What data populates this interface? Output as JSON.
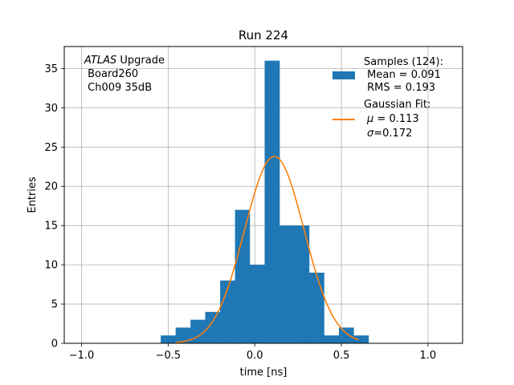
{
  "chart_data": {
    "type": "bar",
    "title": "Run 224",
    "xlabel": "time [ns]",
    "ylabel": "Entries",
    "xlim": [
      -1.1,
      1.2
    ],
    "ylim": [
      0,
      37.8
    ],
    "grid": true,
    "xticks": [
      "−1.0",
      "−0.5",
      "0.0",
      "0.5",
      "1.0"
    ],
    "xtick_values": [
      -1.0,
      -0.5,
      0.0,
      0.5,
      1.0
    ],
    "yticks": [
      "0",
      "5",
      "10",
      "15",
      "20",
      "25",
      "30",
      "35"
    ],
    "ytick_values": [
      0,
      5,
      10,
      15,
      20,
      25,
      30,
      35
    ],
    "bin_width": 0.0857,
    "bin_edges": [
      -0.543,
      -0.457,
      -0.371,
      -0.286,
      -0.2,
      -0.114,
      -0.029,
      0.057,
      0.143,
      0.229,
      0.314,
      0.4,
      0.486,
      0.571,
      0.657
    ],
    "values": [
      1,
      2,
      3,
      4,
      8,
      17,
      10,
      36,
      15,
      15,
      9,
      1,
      2,
      1
    ],
    "series": [
      {
        "name": "Samples (124):",
        "type": "histogram",
        "color": "#1f77b4"
      },
      {
        "name": "Gaussian Fit:",
        "type": "line",
        "color": "#ff7f0e",
        "mu": 0.113,
        "sigma": 0.172,
        "amplitude": 23.8,
        "x_range": [
          -0.457,
          0.6
        ]
      }
    ],
    "legend": {
      "position": "top-right",
      "samples_lines": [
        "Samples (124):",
        " Mean = 0.091",
        " RMS = 0.193"
      ],
      "fit_title": "Gaussian Fit:",
      "fit_mu_symbol": "μ",
      "fit_mu_value": " = 0.113",
      "fit_sigma_symbol": "σ",
      "fit_sigma_value": "=0.172"
    },
    "annotation": {
      "position": "top-left",
      "line1_italic": "ATLAS",
      "line1_rest": " Upgrade",
      "line2": " Board260",
      "line3": " Ch009 35dB"
    }
  }
}
